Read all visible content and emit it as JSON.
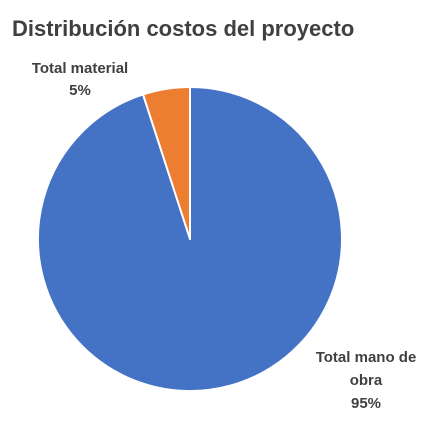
{
  "chart_data": {
    "type": "pie",
    "title": "Distribución costos del proyecto",
    "slices": [
      {
        "label": "Total mano de obra",
        "label_lines": [
          "Total mano de",
          "obra"
        ],
        "value": 95,
        "value_label": "95%",
        "color": "#4472C4"
      },
      {
        "label": "Total material",
        "label_lines": [
          "Total material"
        ],
        "value": 5,
        "value_label": "5%",
        "color": "#ED7D31"
      }
    ],
    "start_angle_deg": 0,
    "direction": "clockwise",
    "legend": "none",
    "data_labels": "outside, category name and percentage"
  }
}
